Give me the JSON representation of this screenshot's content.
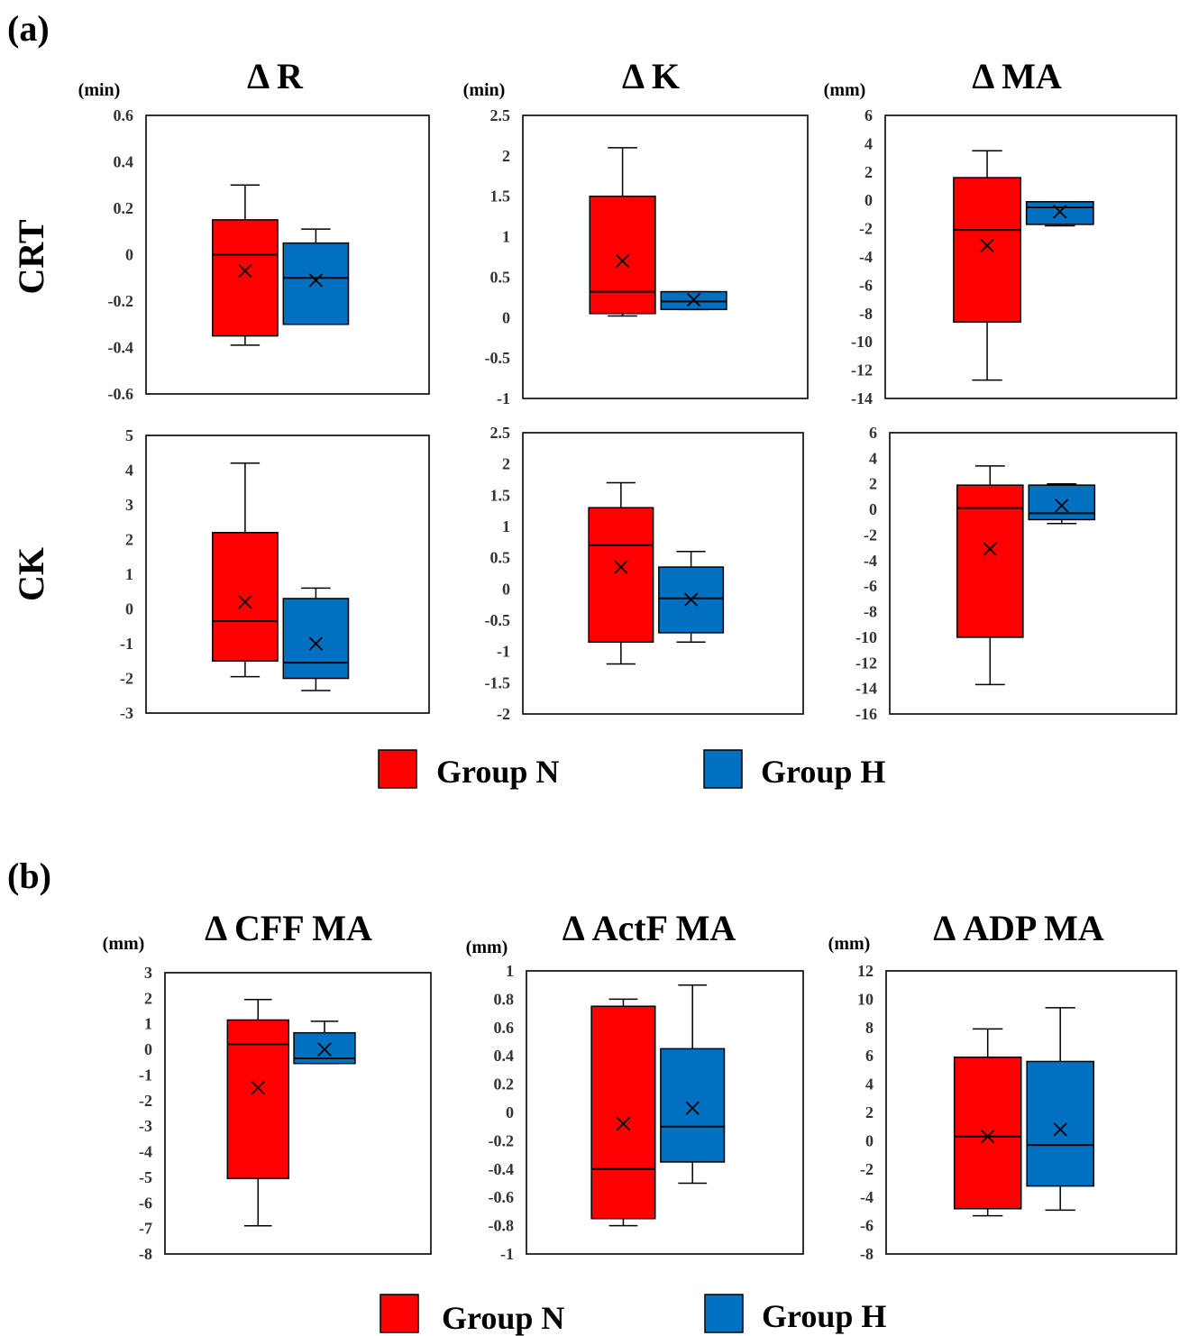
{
  "panels": [
    {
      "label": "(a)",
      "row_labels": [
        "CRT",
        "CK"
      ]
    },
    {
      "label": "(b)",
      "row_labels": []
    }
  ],
  "legend": [
    {
      "name": "Group N",
      "color": "#ff0000"
    },
    {
      "name": "Group H",
      "color": "#0070c0"
    }
  ],
  "chart_data": [
    {
      "type": "box",
      "panel": "(a)",
      "row": "CRT",
      "title": "Δ R",
      "ylabel": "(min)",
      "ylim": [
        -0.6,
        0.6
      ],
      "yticks": [
        "0.6",
        "0.4",
        "0.2",
        "0",
        "-0.2",
        "-0.4",
        "-0.6"
      ],
      "series": [
        {
          "name": "Group N",
          "color": "#ff0000",
          "min": -0.39,
          "q1": -0.35,
          "median": 0.0,
          "q3": 0.15,
          "max": 0.3,
          "mean": -0.07
        },
        {
          "name": "Group H",
          "color": "#0070c0",
          "min": -0.3,
          "q1": -0.3,
          "median": -0.1,
          "q3": 0.05,
          "max": 0.11,
          "mean": -0.11
        }
      ]
    },
    {
      "type": "box",
      "panel": "(a)",
      "row": "CRT",
      "title": "Δ K",
      "ylabel": "(min)",
      "ylim": [
        -1,
        2.5
      ],
      "yticks": [
        "2.5",
        "2",
        "1.5",
        "1",
        "0.5",
        "0",
        "-0.5",
        "-1"
      ],
      "series": [
        {
          "name": "Group N",
          "color": "#ff0000",
          "min": 0.02,
          "q1": 0.05,
          "median": 0.32,
          "q3": 1.5,
          "max": 2.1,
          "mean": 0.7
        },
        {
          "name": "Group H",
          "color": "#0070c0",
          "min": 0.1,
          "q1": 0.1,
          "median": 0.2,
          "q3": 0.32,
          "max": 0.32,
          "mean": 0.22
        }
      ]
    },
    {
      "type": "box",
      "panel": "(a)",
      "row": "CRT",
      "title": "Δ MA",
      "ylabel": "(mm)",
      "ylim": [
        -14,
        6
      ],
      "yticks": [
        "6",
        "4",
        "2",
        "0",
        "-2",
        "-4",
        "-6",
        "-8",
        "-10",
        "-12",
        "-14"
      ],
      "series": [
        {
          "name": "Group N",
          "color": "#ff0000",
          "min": -12.7,
          "q1": -8.6,
          "median": -2.1,
          "q3": 1.6,
          "max": 3.5,
          "mean": -3.2
        },
        {
          "name": "Group H",
          "color": "#0070c0",
          "min": -1.8,
          "q1": -1.7,
          "median": -0.5,
          "q3": -0.1,
          "max": -0.1,
          "mean": -0.8
        }
      ]
    },
    {
      "type": "box",
      "panel": "(a)",
      "row": "CK",
      "title": "",
      "ylabel": "",
      "ylim": [
        -3,
        5
      ],
      "yticks": [
        "5",
        "4",
        "3",
        "2",
        "1",
        "0",
        "-1",
        "-2",
        "-3"
      ],
      "series": [
        {
          "name": "Group N",
          "color": "#ff0000",
          "min": -1.95,
          "q1": -1.5,
          "median": -0.35,
          "q3": 2.2,
          "max": 4.2,
          "mean": 0.2
        },
        {
          "name": "Group H",
          "color": "#0070c0",
          "min": -2.35,
          "q1": -2.0,
          "median": -1.55,
          "q3": 0.3,
          "max": 0.6,
          "mean": -1.0
        }
      ]
    },
    {
      "type": "box",
      "panel": "(a)",
      "row": "CK",
      "title": "",
      "ylabel": "",
      "ylim": [
        -2,
        2.5
      ],
      "yticks": [
        "2.5",
        "2",
        "1.5",
        "1",
        "0.5",
        "0",
        "-0.5",
        "-1",
        "-1.5",
        "-2"
      ],
      "series": [
        {
          "name": "Group N",
          "color": "#ff0000",
          "min": -1.2,
          "q1": -0.85,
          "median": 0.7,
          "q3": 1.3,
          "max": 1.7,
          "mean": 0.35
        },
        {
          "name": "Group H",
          "color": "#0070c0",
          "min": -0.85,
          "q1": -0.7,
          "median": -0.15,
          "q3": 0.35,
          "max": 0.6,
          "mean": -0.17
        }
      ]
    },
    {
      "type": "box",
      "panel": "(a)",
      "row": "CK",
      "title": "",
      "ylabel": "",
      "ylim": [
        -16,
        6
      ],
      "yticks": [
        "6",
        "4",
        "2",
        "0",
        "-2",
        "-4",
        "-6",
        "-8",
        "-10",
        "-12",
        "-14",
        "-16"
      ],
      "series": [
        {
          "name": "Group N",
          "color": "#ff0000",
          "min": -13.7,
          "q1": -10.0,
          "median": 0.1,
          "q3": 1.9,
          "max": 3.4,
          "mean": -3.1
        },
        {
          "name": "Group H",
          "color": "#0070c0",
          "min": -1.1,
          "q1": -0.8,
          "median": -0.3,
          "q3": 1.9,
          "max": 2.0,
          "mean": 0.3
        }
      ]
    },
    {
      "type": "box",
      "panel": "(b)",
      "row": "",
      "title": "Δ CFF MA",
      "ylabel": "(mm)",
      "ylim": [
        -8,
        3
      ],
      "yticks": [
        "3",
        "2",
        "1",
        "0",
        "-1",
        "-2",
        "-3",
        "-4",
        "-5",
        "-6",
        "-7",
        "-8"
      ],
      "series": [
        {
          "name": "Group N",
          "color": "#ff0000",
          "min": -6.9,
          "q1": -5.05,
          "median": 0.2,
          "q3": 1.15,
          "max": 1.95,
          "mean": -1.5
        },
        {
          "name": "Group H",
          "color": "#0070c0",
          "min": -0.55,
          "q1": -0.55,
          "median": -0.35,
          "q3": 0.65,
          "max": 1.1,
          "mean": 0.0
        }
      ]
    },
    {
      "type": "box",
      "panel": "(b)",
      "row": "",
      "title": "Δ ActF MA",
      "ylabel": "(mm)",
      "ylim": [
        -1,
        1
      ],
      "yticks": [
        "1",
        "0.8",
        "0.6",
        "0.4",
        "0.2",
        "0",
        "-0.2",
        "-0.4",
        "-0.6",
        "-0.8",
        "-1"
      ],
      "series": [
        {
          "name": "Group N",
          "color": "#ff0000",
          "min": -0.8,
          "q1": -0.75,
          "median": -0.4,
          "q3": 0.75,
          "max": 0.8,
          "mean": -0.08
        },
        {
          "name": "Group H",
          "color": "#0070c0",
          "min": -0.5,
          "q1": -0.35,
          "median": -0.1,
          "q3": 0.45,
          "max": 0.9,
          "mean": 0.03
        }
      ]
    },
    {
      "type": "box",
      "panel": "(b)",
      "row": "",
      "title": "Δ ADP MA",
      "ylabel": "(mm)",
      "ylim": [
        -8,
        12
      ],
      "yticks": [
        "12",
        "10",
        "8",
        "6",
        "4",
        "2",
        "0",
        "-2",
        "-4",
        "-6",
        "-8"
      ],
      "series": [
        {
          "name": "Group N",
          "color": "#ff0000",
          "min": -5.3,
          "q1": -4.8,
          "median": 0.3,
          "q3": 5.9,
          "max": 7.9,
          "mean": 0.3
        },
        {
          "name": "Group H",
          "color": "#0070c0",
          "min": -4.9,
          "q1": -3.2,
          "median": -0.3,
          "q3": 5.6,
          "max": 9.4,
          "mean": 0.8
        }
      ]
    }
  ]
}
